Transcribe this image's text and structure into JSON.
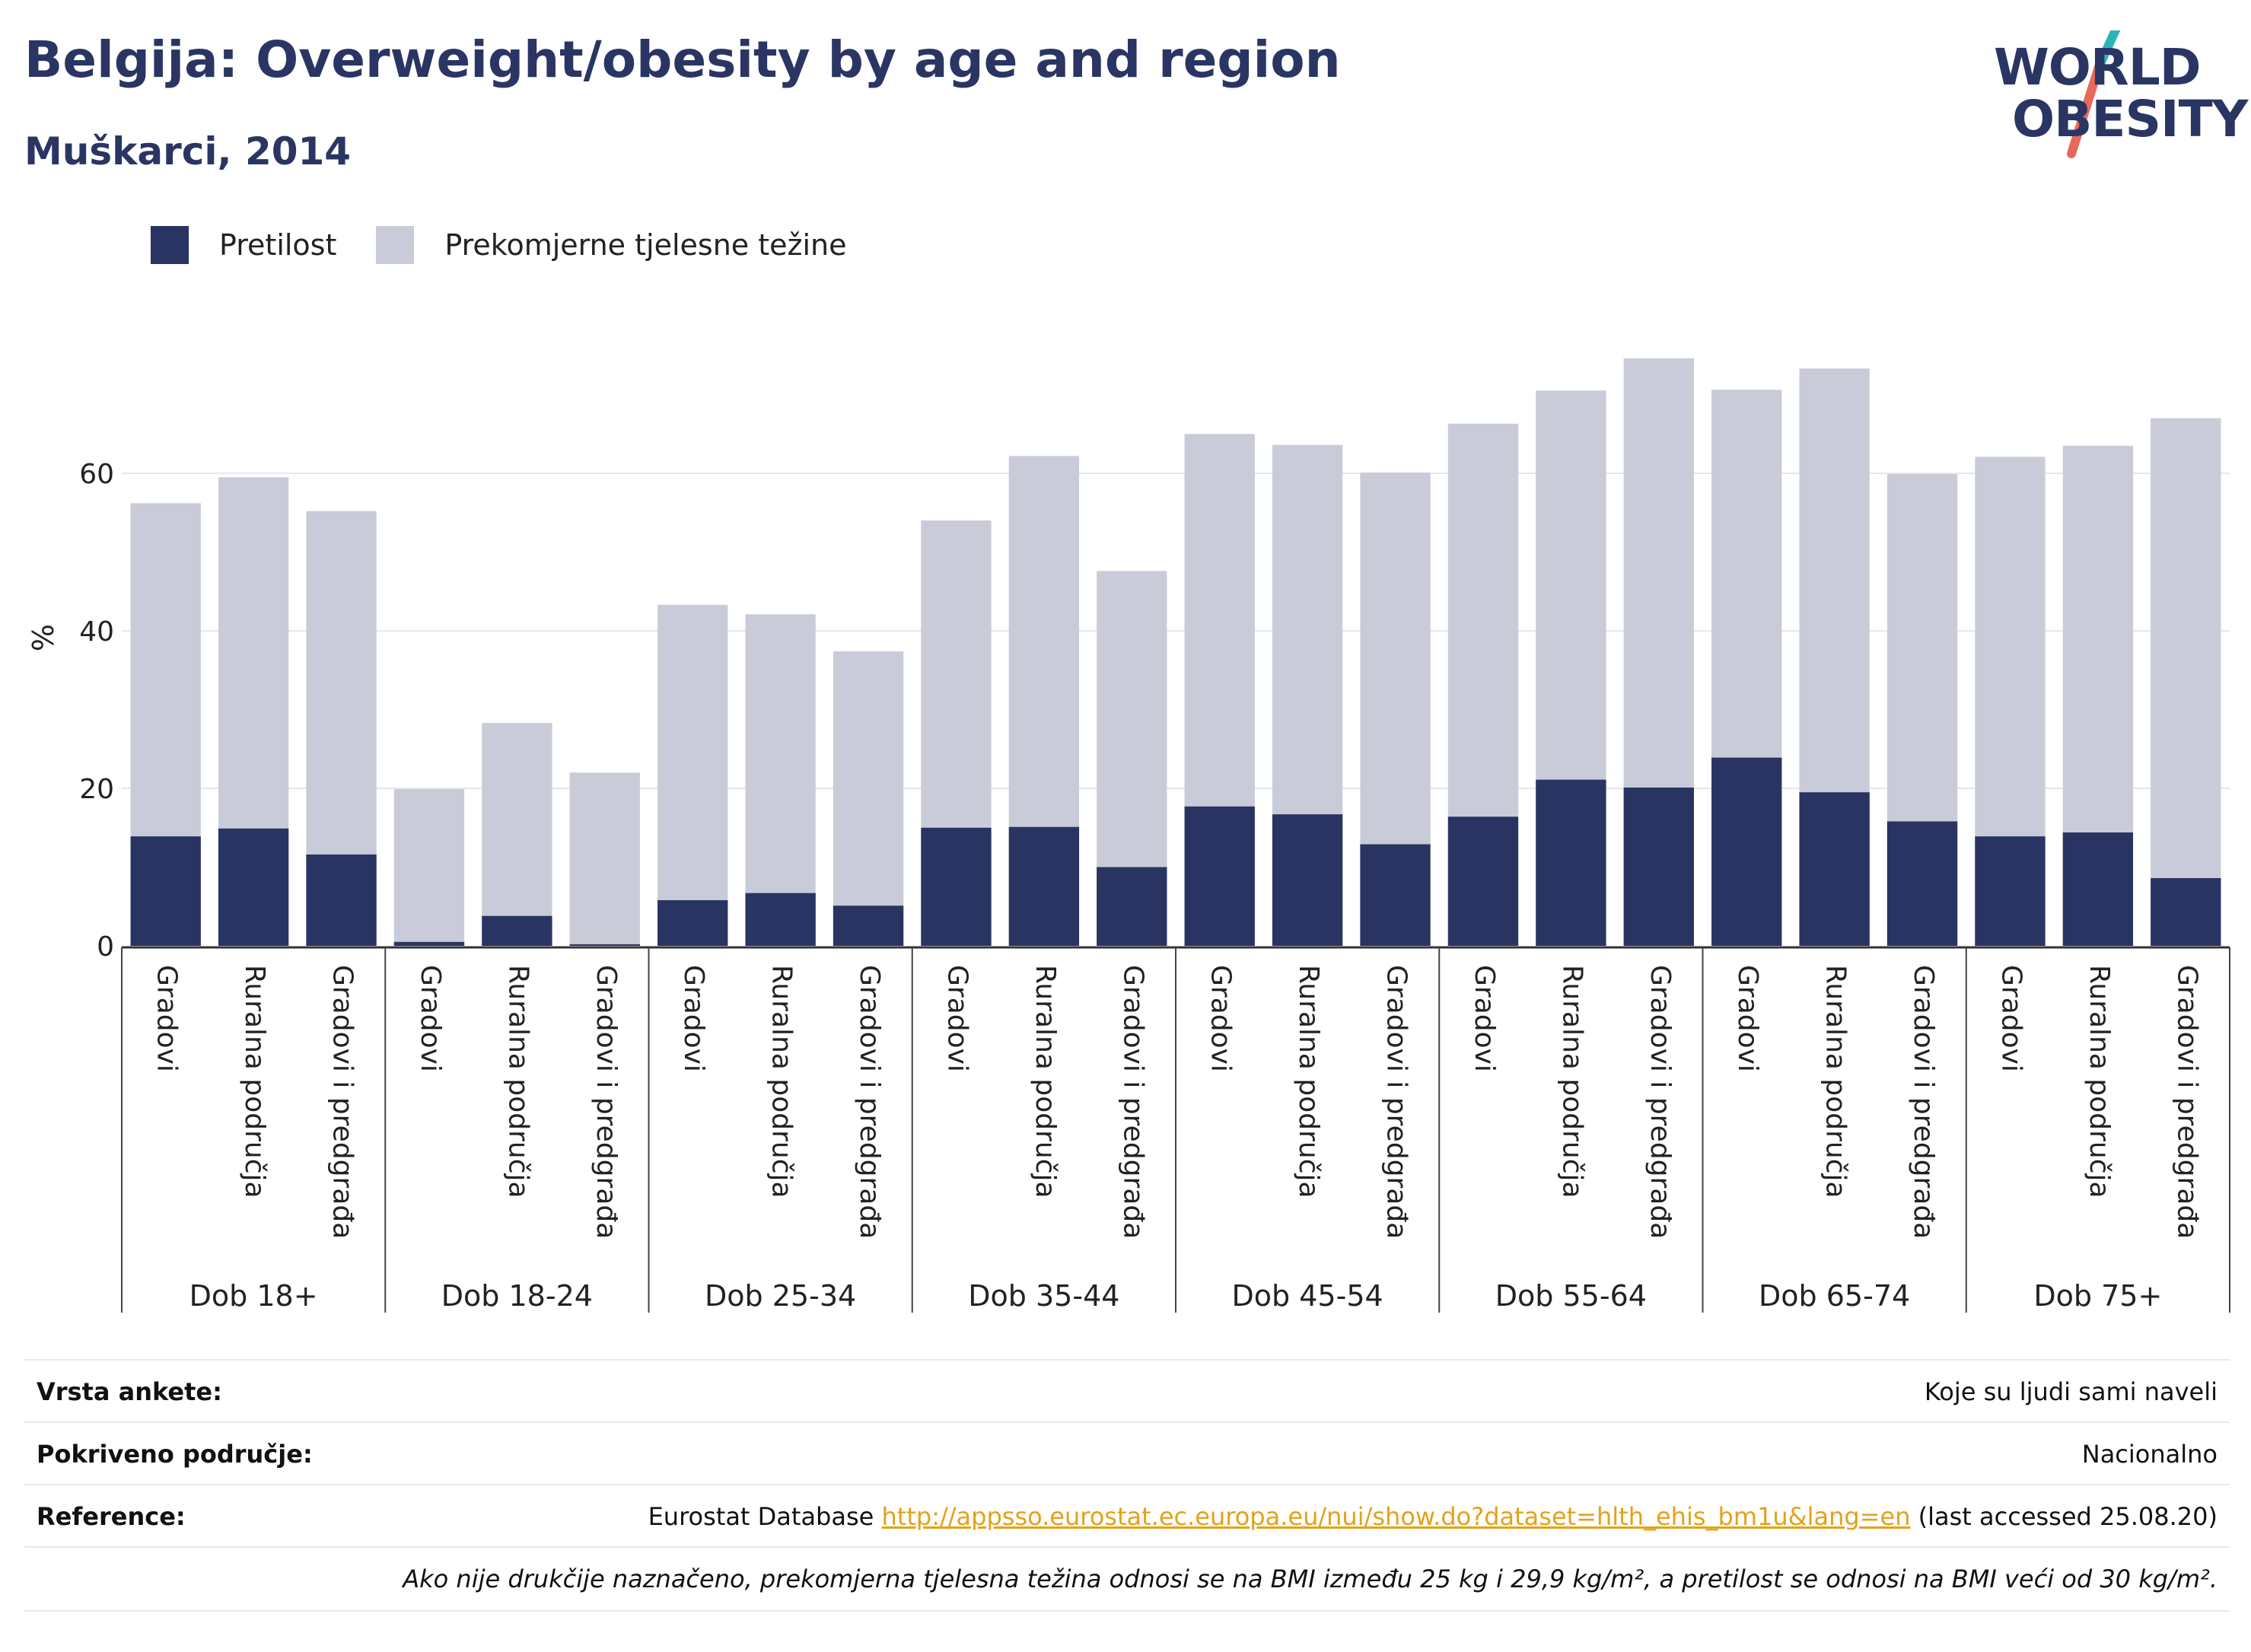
{
  "title": "Belgija: Overweight/obesity by age and region",
  "subtitle": "Muškarci, 2014",
  "logo": {
    "line1": "WORLD",
    "line2": "OBESITY",
    "accent_colors": [
      "#2bb5b8",
      "#e8695a"
    ]
  },
  "legend": [
    {
      "label": "Pretilost",
      "color": "#293462"
    },
    {
      "label": "Prekomjerne tjelesne težine",
      "color": "#c9ccd8"
    }
  ],
  "chart_data": {
    "type": "bar",
    "stacked": false,
    "ylabel": "%",
    "ylim": [
      0,
      80
    ],
    "yticks": [
      0,
      20,
      40,
      60
    ],
    "grid": true,
    "legend_position": "top-left",
    "groups": [
      "Dob 18+",
      "Dob 18-24",
      "Dob 25-34",
      "Dob 35-44",
      "Dob 45-54",
      "Dob 55-64",
      "Dob 65-74",
      "Dob 75+"
    ],
    "categories": [
      "Gradovi",
      "Ruralna područja",
      "Gradovi i predgrađa"
    ],
    "series": [
      {
        "name": "Prekomjerne tjelesne težine",
        "color": "#c9ccd8",
        "values": [
          [
            56.2,
            59.5,
            55.2
          ],
          [
            19.9,
            28.3,
            22.0
          ],
          [
            43.3,
            42.1,
            37.4
          ],
          [
            54.0,
            62.2,
            47.6
          ],
          [
            65.0,
            63.6,
            60.1
          ],
          [
            66.3,
            70.5,
            74.6
          ],
          [
            70.6,
            73.3,
            59.9
          ],
          [
            62.1,
            63.5,
            67.0
          ]
        ]
      },
      {
        "name": "Pretilost",
        "color": "#293462",
        "values": [
          [
            13.9,
            14.9,
            11.6
          ],
          [
            0.5,
            3.8,
            0.2
          ],
          [
            5.8,
            6.7,
            5.1
          ],
          [
            15.0,
            15.1,
            10.0
          ],
          [
            17.7,
            16.7,
            12.9
          ],
          [
            16.4,
            21.1,
            20.1
          ],
          [
            23.9,
            19.5,
            15.8
          ],
          [
            13.9,
            14.4,
            8.6
          ]
        ]
      }
    ]
  },
  "info": {
    "survey_label": "Vrsta ankete:",
    "survey_value": "Koje su ljudi sami naveli",
    "coverage_label": "Pokriveno područje:",
    "coverage_value": "Nacionalno",
    "reference_label": "Reference:",
    "reference_prefix": "Eurostat Database ",
    "reference_link": "http://appsso.eurostat.ec.europa.eu/nui/show.do?dataset=hlth_ehis_bm1u&lang=en",
    "reference_suffix": " (last accessed 25.08.20)",
    "note": "Ako nije drukčije naznačeno, prekomjerna tjelesna težina odnosi se na BMI između 25 kg i 29,9 kg/m², a pretilost se odnosi na BMI veći od 30 kg/m²."
  }
}
